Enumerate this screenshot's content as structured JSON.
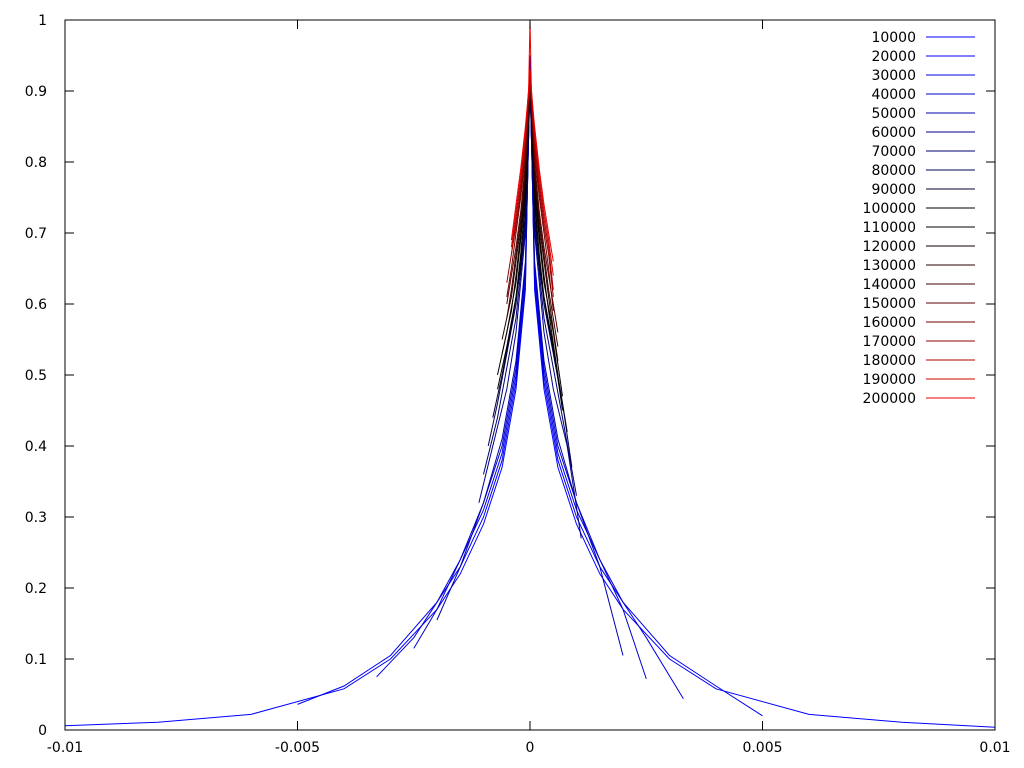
{
  "chart_data": {
    "type": "line",
    "title": "",
    "xlabel": "",
    "ylabel": "",
    "xlim": [
      -0.01,
      0.01
    ],
    "ylim": [
      0,
      1
    ],
    "x_ticks": [
      "-0.01",
      "-0.005",
      "0",
      "0.005",
      "0.01"
    ],
    "x_tick_values": [
      -0.01,
      -0.005,
      0,
      0.005,
      0.01
    ],
    "y_ticks": [
      "0",
      "0.1",
      "0.2",
      "0.3",
      "0.4",
      "0.5",
      "0.6",
      "0.7",
      "0.8",
      "0.9",
      "1"
    ],
    "y_tick_values": [
      0,
      0.1,
      0.2,
      0.3,
      0.4,
      0.5,
      0.6,
      0.7,
      0.8,
      0.9,
      1
    ],
    "grid": false,
    "legend_position": "top-right",
    "series": [
      {
        "name": "10000",
        "color": "#0000ff",
        "x": [
          -0.01,
          -0.008,
          -0.006,
          -0.004,
          -0.003,
          -0.002,
          -0.0015,
          -0.001,
          -0.0006,
          -0.0003,
          -0.0001,
          0,
          0.0001,
          0.0003,
          0.0006,
          0.001,
          0.0015,
          0.002,
          0.003,
          0.004,
          0.006,
          0.008,
          0.01
        ],
        "y": [
          0.006,
          0.011,
          0.022,
          0.058,
          0.1,
          0.17,
          0.22,
          0.29,
          0.37,
          0.48,
          0.62,
          0.95,
          0.62,
          0.48,
          0.37,
          0.29,
          0.22,
          0.17,
          0.1,
          0.058,
          0.022,
          0.011,
          0.004
        ]
      },
      {
        "name": "20000",
        "color": "#0000f0",
        "x": [
          -0.005,
          -0.004,
          -0.003,
          -0.002,
          -0.0015,
          -0.001,
          -0.0006,
          -0.0003,
          -0.0001,
          0,
          0.0001,
          0.0003,
          0.0006,
          0.001,
          0.0015,
          0.002,
          0.003,
          0.004,
          0.005
        ],
        "y": [
          0.036,
          0.062,
          0.105,
          0.18,
          0.23,
          0.3,
          0.38,
          0.49,
          0.63,
          0.93,
          0.63,
          0.49,
          0.38,
          0.3,
          0.23,
          0.18,
          0.105,
          0.062,
          0.02
        ]
      },
      {
        "name": "30000",
        "color": "#0000e0",
        "x": [
          -0.0033,
          -0.0025,
          -0.002,
          -0.0015,
          -0.001,
          -0.0006,
          -0.0003,
          -0.0001,
          0,
          0.0001,
          0.0003,
          0.0006,
          0.001,
          0.0015,
          0.002,
          0.0025,
          0.0033
        ],
        "y": [
          0.075,
          0.13,
          0.18,
          0.24,
          0.31,
          0.39,
          0.5,
          0.64,
          0.92,
          0.64,
          0.5,
          0.39,
          0.31,
          0.24,
          0.18,
          0.13,
          0.044
        ]
      },
      {
        "name": "40000",
        "color": "#0000cc",
        "x": [
          -0.0025,
          -0.002,
          -0.0015,
          -0.001,
          -0.0006,
          -0.0003,
          -0.0001,
          0,
          0.0001,
          0.0003,
          0.0006,
          0.001,
          0.0015,
          0.002,
          0.0025
        ],
        "y": [
          0.115,
          0.17,
          0.24,
          0.32,
          0.4,
          0.51,
          0.65,
          0.92,
          0.65,
          0.51,
          0.4,
          0.32,
          0.24,
          0.17,
          0.072
        ]
      },
      {
        "name": "50000",
        "color": "#0000b0",
        "x": [
          -0.002,
          -0.0015,
          -0.001,
          -0.0006,
          -0.0003,
          -0.0001,
          0,
          0.0001,
          0.0003,
          0.0006,
          0.001,
          0.0015,
          0.002
        ],
        "y": [
          0.155,
          0.23,
          0.32,
          0.41,
          0.52,
          0.66,
          0.91,
          0.66,
          0.52,
          0.41,
          0.32,
          0.23,
          0.105
        ]
      },
      {
        "name": "60000",
        "color": "#000090",
        "x": [
          -0.0011,
          -0.0008,
          -0.0005,
          -0.0003,
          -0.0001,
          0,
          0.0001,
          0.0003,
          0.0005,
          0.0008,
          0.0011
        ],
        "y": [
          0.32,
          0.4,
          0.48,
          0.56,
          0.7,
          0.91,
          0.7,
          0.56,
          0.48,
          0.4,
          0.27
        ]
      },
      {
        "name": "70000",
        "color": "#000070",
        "x": [
          -0.001,
          -0.0007,
          -0.0005,
          -0.0003,
          -0.0001,
          0,
          0.0001,
          0.0003,
          0.0005,
          0.0007,
          0.001
        ],
        "y": [
          0.36,
          0.44,
          0.51,
          0.58,
          0.71,
          0.91,
          0.71,
          0.58,
          0.51,
          0.44,
          0.33
        ]
      },
      {
        "name": "80000",
        "color": "#000050",
        "x": [
          -0.0009,
          -0.0007,
          -0.0005,
          -0.0003,
          -0.0001,
          0,
          0.0001,
          0.0003,
          0.0005,
          0.0007,
          0.0009
        ],
        "y": [
          0.4,
          0.46,
          0.53,
          0.6,
          0.72,
          0.91,
          0.72,
          0.6,
          0.53,
          0.46,
          0.37
        ]
      },
      {
        "name": "90000",
        "color": "#000030",
        "x": [
          -0.0008,
          -0.0006,
          -0.0004,
          -0.0002,
          -0.0001,
          0,
          0.0001,
          0.0002,
          0.0004,
          0.0006,
          0.0008
        ],
        "y": [
          0.44,
          0.5,
          0.57,
          0.65,
          0.74,
          0.91,
          0.74,
          0.65,
          0.57,
          0.5,
          0.42
        ]
      },
      {
        "name": "100000",
        "color": "#000000",
        "x": [
          -0.0007,
          -0.0005,
          -0.0003,
          -0.0002,
          -0.0001,
          0,
          0.0001,
          0.0002,
          0.0003,
          0.0005,
          0.0007
        ],
        "y": [
          0.48,
          0.54,
          0.61,
          0.67,
          0.75,
          0.91,
          0.75,
          0.67,
          0.61,
          0.54,
          0.45
        ]
      },
      {
        "name": "110000",
        "color": "#000000",
        "x": [
          -0.0007,
          -0.0005,
          -0.0003,
          -0.0002,
          -0.0001,
          0,
          0.0001,
          0.0002,
          0.0003,
          0.0005,
          0.0007
        ],
        "y": [
          0.5,
          0.56,
          0.63,
          0.69,
          0.76,
          0.91,
          0.76,
          0.69,
          0.63,
          0.56,
          0.47
        ]
      },
      {
        "name": "120000",
        "color": "#100000",
        "x": [
          -0.0006,
          -0.0004,
          -0.0003,
          -0.0002,
          -0.0001,
          0,
          0.0001,
          0.0002,
          0.0003,
          0.0004,
          0.0006
        ],
        "y": [
          0.53,
          0.59,
          0.64,
          0.7,
          0.77,
          0.91,
          0.77,
          0.7,
          0.64,
          0.59,
          0.5
        ]
      },
      {
        "name": "130000",
        "color": "#280000",
        "x": [
          -0.0006,
          -0.0004,
          -0.0003,
          -0.0002,
          -0.0001,
          0,
          0.0001,
          0.0002,
          0.0003,
          0.0004,
          0.0006
        ],
        "y": [
          0.55,
          0.61,
          0.66,
          0.71,
          0.78,
          0.91,
          0.78,
          0.71,
          0.66,
          0.61,
          0.52
        ]
      },
      {
        "name": "140000",
        "color": "#400000",
        "x": [
          -0.0005,
          -0.0004,
          -0.0003,
          -0.0002,
          -0.0001,
          0,
          0.0001,
          0.0002,
          0.0003,
          0.0004,
          0.0006
        ],
        "y": [
          0.58,
          0.62,
          0.67,
          0.72,
          0.79,
          0.91,
          0.79,
          0.72,
          0.67,
          0.62,
          0.54
        ]
      },
      {
        "name": "150000",
        "color": "#580000",
        "x": [
          -0.0005,
          -0.0004,
          -0.0003,
          -0.0002,
          -0.0001,
          0,
          0.0001,
          0.0002,
          0.0003,
          0.0004,
          0.0006
        ],
        "y": [
          0.6,
          0.64,
          0.68,
          0.73,
          0.8,
          0.92,
          0.8,
          0.73,
          0.68,
          0.64,
          0.56
        ]
      },
      {
        "name": "160000",
        "color": "#700000",
        "x": [
          -0.0005,
          -0.0004,
          -0.0003,
          -0.0002,
          -0.0001,
          0,
          0.0001,
          0.0002,
          0.0003,
          0.0004,
          0.0005
        ],
        "y": [
          0.61,
          0.65,
          0.7,
          0.75,
          0.81,
          0.92,
          0.81,
          0.75,
          0.7,
          0.65,
          0.59
        ]
      },
      {
        "name": "170000",
        "color": "#900000",
        "x": [
          -0.0005,
          -0.0004,
          -0.0003,
          -0.0002,
          -0.0001,
          0,
          0.0001,
          0.0002,
          0.0003,
          0.0004,
          0.0005
        ],
        "y": [
          0.63,
          0.67,
          0.71,
          0.76,
          0.82,
          0.92,
          0.82,
          0.76,
          0.71,
          0.67,
          0.61
        ]
      },
      {
        "name": "180000",
        "color": "#b00000",
        "x": [
          -0.0004,
          -0.0003,
          -0.0002,
          -0.0001,
          0,
          0.0001,
          0.0002,
          0.0003,
          0.0004,
          0.0005
        ],
        "y": [
          0.67,
          0.72,
          0.77,
          0.83,
          0.92,
          0.83,
          0.77,
          0.72,
          0.68,
          0.62
        ]
      },
      {
        "name": "190000",
        "color": "#d00000",
        "x": [
          -0.0004,
          -0.0003,
          -0.0002,
          -0.0001,
          0,
          0.0001,
          0.0002,
          0.0003,
          0.0004,
          0.0005
        ],
        "y": [
          0.68,
          0.73,
          0.78,
          0.84,
          0.93,
          0.84,
          0.78,
          0.73,
          0.69,
          0.64
        ]
      },
      {
        "name": "200000",
        "color": "#ee0000",
        "x": [
          -0.0004,
          -0.0003,
          -0.0002,
          -0.0001,
          -3e-05,
          0,
          3e-05,
          0.0001,
          0.0002,
          0.0003,
          0.0004,
          0.0005
        ],
        "y": [
          0.69,
          0.74,
          0.79,
          0.85,
          0.9,
          1.0,
          0.9,
          0.85,
          0.79,
          0.74,
          0.7,
          0.66
        ]
      }
    ]
  }
}
